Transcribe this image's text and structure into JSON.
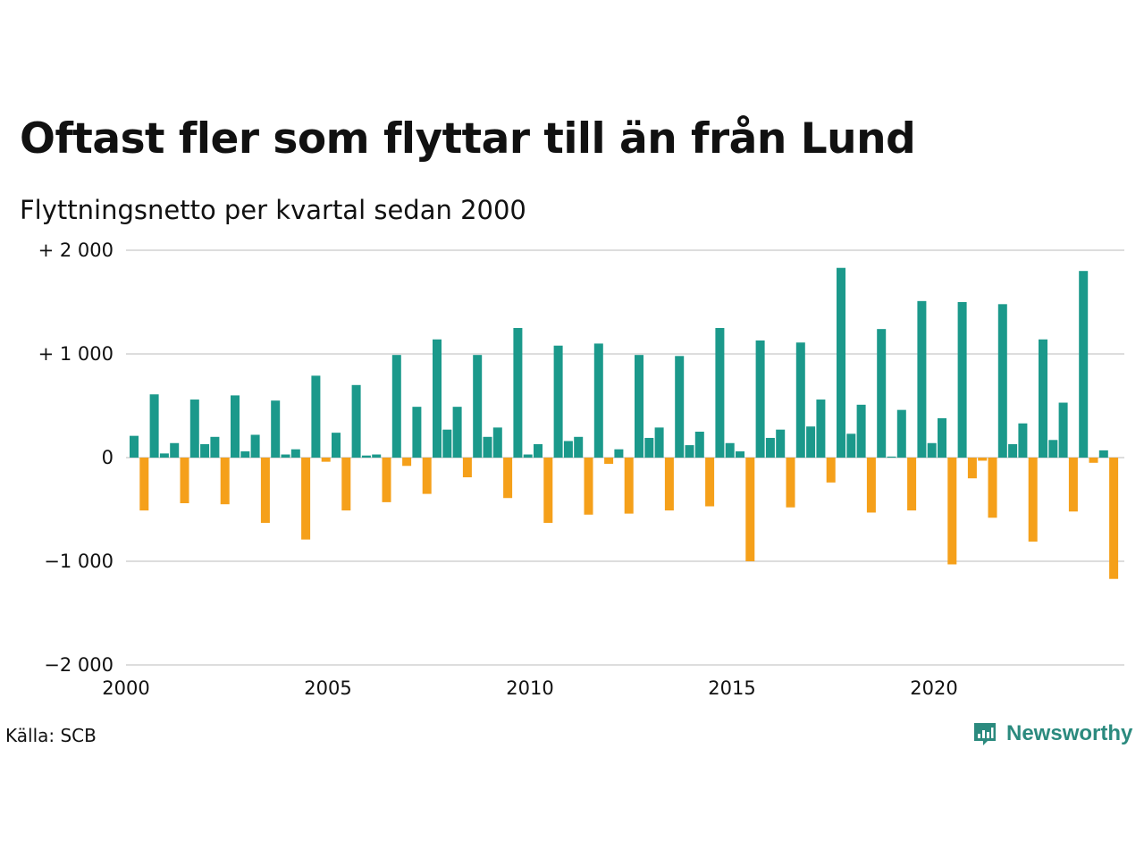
{
  "title": "Oftast fler som flyttar till än från Lund",
  "subtitle": "Flyttningsnetto per kvartal sedan 2000",
  "source": "Källa: SCB",
  "brand": "Newsworthy",
  "colors": {
    "positive": "#1b998b",
    "negative": "#f5a01a",
    "grid": "#dddddd",
    "brand": "#2b8a7e"
  },
  "chart_data": {
    "type": "bar",
    "x_start": "2000 Q1",
    "xlabel": "",
    "ylabel": "",
    "ylim": [
      -2000,
      2000
    ],
    "grid": true,
    "y_ticks": [
      {
        "value": 2000,
        "label": "+ 2 000"
      },
      {
        "value": 1000,
        "label": "+ 1 000"
      },
      {
        "value": 0,
        "label": "0"
      },
      {
        "value": -1000,
        "label": "−1 000"
      },
      {
        "value": -2000,
        "label": "−2 000"
      }
    ],
    "x_ticks": [
      "2000",
      "2005",
      "2010",
      "2015",
      "2020"
    ],
    "values": [
      210,
      -510,
      610,
      40,
      140,
      -440,
      560,
      130,
      200,
      -450,
      600,
      60,
      220,
      -630,
      550,
      30,
      80,
      -790,
      790,
      -40,
      240,
      -510,
      700,
      20,
      30,
      -430,
      990,
      -80,
      490,
      -350,
      1140,
      270,
      490,
      -190,
      990,
      200,
      290,
      -390,
      1250,
      30,
      130,
      -630,
      1080,
      160,
      200,
      -550,
      1100,
      -60,
      80,
      -540,
      990,
      190,
      290,
      -510,
      980,
      120,
      250,
      -470,
      1250,
      140,
      60,
      -1000,
      1130,
      190,
      270,
      -480,
      1110,
      300,
      560,
      -240,
      1830,
      230,
      510,
      -530,
      1240,
      10,
      460,
      -510,
      1510,
      140,
      380,
      -1030,
      1500,
      -200,
      -30,
      -580,
      1480,
      130,
      330,
      -810,
      1140,
      170,
      530,
      -520,
      1800,
      -50,
      70,
      -1170
    ]
  }
}
